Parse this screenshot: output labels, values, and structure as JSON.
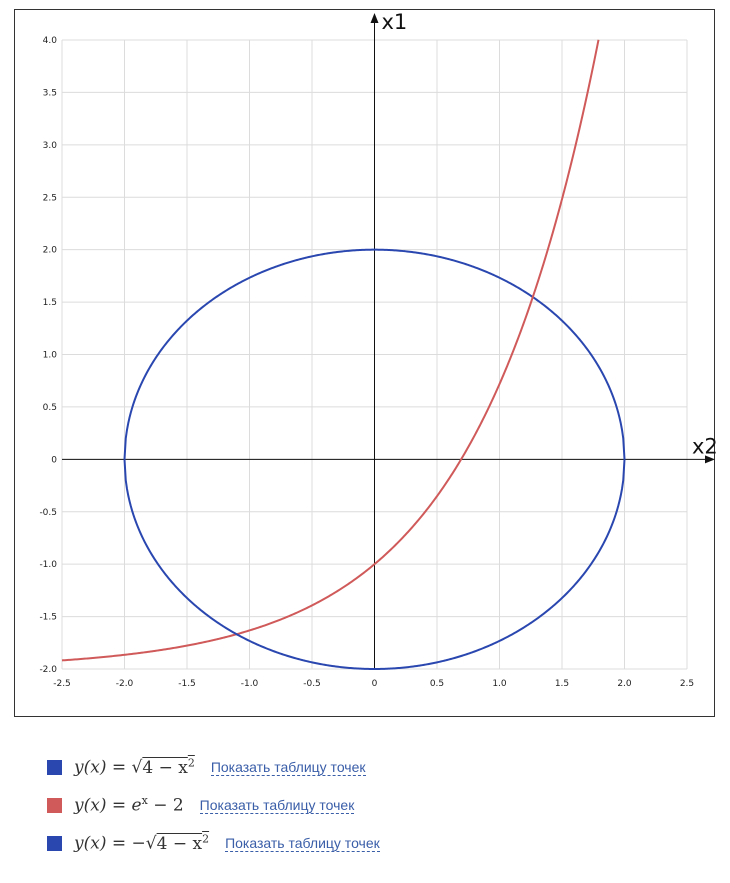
{
  "chart_data": {
    "type": "line",
    "x_axis_name": "x2",
    "y_axis_name": "x1",
    "xlim": [
      -2.5,
      2.5
    ],
    "ylim": [
      -2.0,
      4.0
    ],
    "x_ticks": [
      "-2.5",
      "-2.0",
      "-1.5",
      "-1.0",
      "-0.5",
      "0",
      "0.5",
      "1.0",
      "1.5",
      "2.0",
      "2.5"
    ],
    "y_ticks": [
      "-2.0",
      "-1.5",
      "-1.0",
      "-0.5",
      "0",
      "0.5",
      "1.0",
      "1.5",
      "2.0",
      "2.5",
      "3.0",
      "3.5",
      "4.0"
    ],
    "grid": true,
    "series": [
      {
        "color": "#2a47b0",
        "function": "sqrt(4-x^2)",
        "x_range": [
          -2,
          2
        ]
      },
      {
        "color": "#d05a5a",
        "function": "exp(x)-2",
        "x_range": [
          -2.5,
          1.792
        ]
      },
      {
        "color": "#2a47b0",
        "function": "-sqrt(4-x^2)",
        "x_range": [
          -2,
          2
        ]
      }
    ]
  },
  "legend": [
    {
      "color": "#2a47b0",
      "formula_prefix": "y(x) = ",
      "radical": "√",
      "radicand": "4 − x",
      "exp": "2",
      "link": "Показать таблицу точек"
    },
    {
      "color": "#d05a5a",
      "formula_prefix": "y(x) = e",
      "exp": "x",
      "formula_suffix": " − 2",
      "link": "Показать таблицу точек"
    },
    {
      "color": "#2a47b0",
      "formula_prefix": "y(x) = −",
      "radical": "√",
      "radicand": "4 − x",
      "exp": "2",
      "link": "Показать таблицу точек"
    }
  ]
}
